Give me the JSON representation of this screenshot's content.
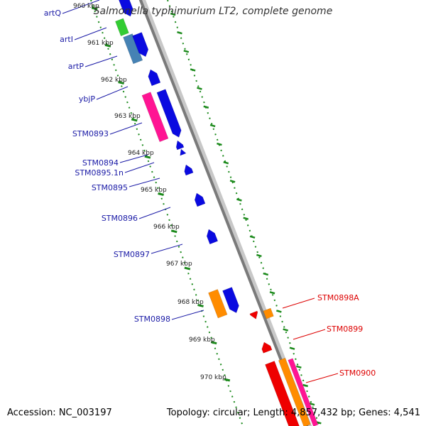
{
  "title": "Salmonella typhimurium LT2, complete genome",
  "footer": {
    "accession": "Accession: NC_003197",
    "summary": "Topology: circular; Length: 4,857,432 bp; Genes: 4,541"
  },
  "colors": {
    "backbone": "#808080",
    "tick": "#1c8a1c",
    "label_left": "#1a1aa6",
    "label_right": "#dd0000",
    "gene_blue": "#0a0ae0",
    "gene_pink": "#ff1493",
    "gene_orange": "#ff8c00",
    "gene_red": "#ee0000",
    "gene_steelblue": "#4682b4",
    "gene_green": "#33cc33"
  },
  "kbp_labels": [
    "960 kbp",
    "961 kbp",
    "962 kbp",
    "963 kbp",
    "964 kbp",
    "965 kbp",
    "966 kbp",
    "967 kbp",
    "968 kbp",
    "969 kbp",
    "970 kbp"
  ],
  "labels_left": [
    "artQ",
    "artI",
    "artP",
    "ybjP",
    "STM0893",
    "STM0894",
    "STM0895.1n",
    "STM0895",
    "STM0896",
    "STM0897",
    "STM0898"
  ],
  "labels_right": [
    "STM0898A",
    "STM0899",
    "STM0900"
  ]
}
